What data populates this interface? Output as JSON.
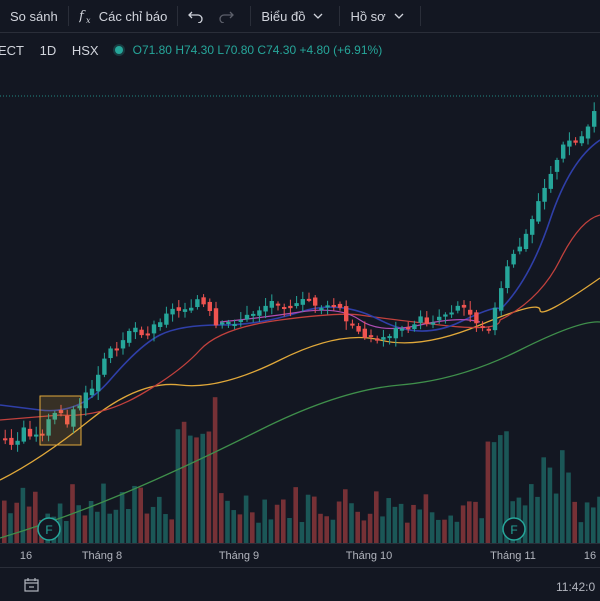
{
  "toolbar": {
    "compare": "So sánh",
    "indicators": "Các chỉ báo",
    "chart": "Biểu đồ",
    "profile": "Hồ sơ",
    "icons": [
      "fx-icon",
      "undo-icon",
      "redo-icon",
      "chevron-down-icon"
    ]
  },
  "legend": {
    "symbol": "ECT",
    "interval": "1D",
    "exchange": "HSX",
    "open": "O71.80",
    "high": "H74.30",
    "low": "L70.80",
    "close": "C74.30",
    "change": "+4.80 (+6.91%)"
  },
  "timeaxis": {
    "labels": [
      "16",
      "Tháng 8",
      "Tháng 9",
      "Tháng 10",
      "Tháng 11",
      "16"
    ]
  },
  "events": [
    {
      "label": "F",
      "color": "#26a69a"
    },
    {
      "label": "F",
      "color": "#26a69a"
    }
  ],
  "clock": "11:42:0",
  "colors": {
    "up": "#26a69a",
    "down": "#ef5350",
    "ma_fast": "#2f3fa8",
    "ma_mid": "#c2413d",
    "ma_slow": "#e0a83a",
    "ma_long": "#3f8f4b",
    "pink": "#b04db3",
    "background": "#131722"
  },
  "chart_data": {
    "type": "candlestick",
    "x": [
      "16",
      "Tháng 8",
      "Tháng 9",
      "Tháng 10",
      "Tháng 11",
      "16"
    ],
    "last_close": 74.3,
    "series": [
      {
        "name": "MA-fast (dark blue)"
      },
      {
        "name": "MA-mid (red)"
      },
      {
        "name": "MA-slow (orange)"
      },
      {
        "name": "MA-long (green)"
      },
      {
        "name": "MA (pink)"
      }
    ],
    "volume": true,
    "grid": false
  }
}
